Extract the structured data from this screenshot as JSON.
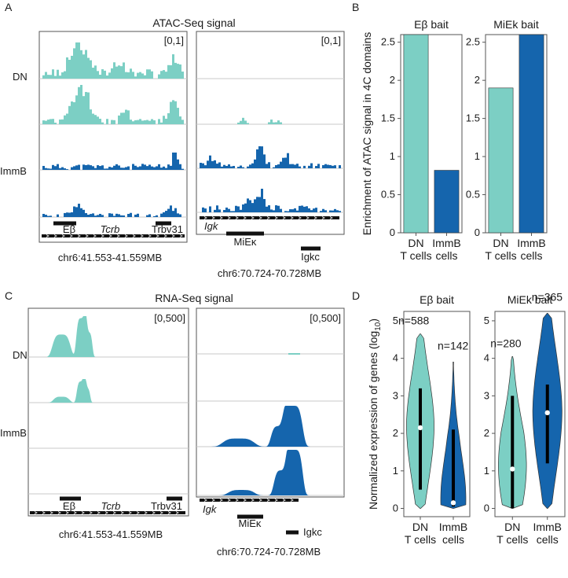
{
  "colors": {
    "dn": "#7ccfc4",
    "immb": "#1565ad",
    "frame": "#555555",
    "grid": "#c8c8c8",
    "gene": "#111111"
  },
  "panel_letters": [
    "A",
    "B",
    "C",
    "D"
  ],
  "panel_a": {
    "title": "ATAC-Seq signal",
    "row_labels": [
      "DN",
      "ImmB"
    ],
    "left": {
      "scale": "[0,1]",
      "coord": "chr6:41.553-41.559MB",
      "genes": [
        {
          "label": "Eβ",
          "italic": false
        },
        {
          "label": "Tcrb",
          "italic": true
        },
        {
          "label": "Trbv31",
          "italic": false
        }
      ]
    },
    "right": {
      "scale": "[0,1]",
      "coord": "chr6:70.724-70.728MB",
      "genes": [
        {
          "label": "Igk",
          "italic": true
        },
        {
          "label": "MiEκ",
          "italic": false
        },
        {
          "label": "Igkc",
          "italic": false
        }
      ]
    }
  },
  "panel_c": {
    "title": "RNA-Seq signal",
    "row_labels": [
      "DN",
      "ImmB"
    ],
    "left": {
      "scale": "[0,500]",
      "coord": "chr6:41.553-41.559MB",
      "genes": [
        {
          "label": "Eβ",
          "italic": false
        },
        {
          "label": "Tcrb",
          "italic": true
        },
        {
          "label": "Trbv31",
          "italic": false
        }
      ]
    },
    "right": {
      "scale": "[0,500]",
      "coord": "chr6:70.724-70.728MB",
      "genes": [
        {
          "label": "Igk",
          "italic": true
        },
        {
          "label": "MiEκ",
          "italic": false
        },
        {
          "label": "Igkc",
          "italic": false
        }
      ]
    }
  },
  "chart_data": [
    {
      "id": "B-Eb",
      "type": "bar",
      "title": "Eβ bait",
      "ylabel": "Enrichment of ATAC signal in 4C domains",
      "categories": [
        [
          "DN",
          "T cells"
        ],
        [
          "ImmB",
          "cells"
        ]
      ],
      "values": [
        2.6,
        0.82
      ],
      "ylim": [
        0,
        2.6
      ],
      "yticks": [
        0,
        0.5,
        1,
        1.5,
        2,
        2.5
      ]
    },
    {
      "id": "B-MiEk",
      "type": "bar",
      "title": "MiEk bait",
      "categories": [
        [
          "DN",
          "T cells"
        ],
        [
          "ImmB",
          "cells"
        ]
      ],
      "values": [
        1.9,
        2.6
      ],
      "ylim": [
        0,
        2.6
      ],
      "yticks": [
        0,
        0.5,
        1,
        1.5,
        2,
        2.5
      ]
    },
    {
      "id": "D-Eb",
      "type": "violin",
      "title": "Eβ bait",
      "ylabel": "Normalized expression of genes (log10)",
      "categories": [
        [
          "DN",
          "T cells"
        ],
        [
          "ImmB",
          "cells"
        ]
      ],
      "n_labels": [
        "n=588",
        "n=142"
      ],
      "medians": [
        2.15,
        0.15
      ],
      "iqr": [
        [
          0.5,
          3.2
        ],
        [
          0.05,
          2.1
        ]
      ],
      "ranges": [
        [
          0,
          4.65
        ],
        [
          0,
          3.9
        ]
      ],
      "ylim": [
        0,
        5.2
      ],
      "yticks": [
        0,
        1,
        2,
        3,
        4,
        5
      ]
    },
    {
      "id": "D-MiEk",
      "type": "violin",
      "title": "MiEk bait",
      "categories": [
        [
          "DN",
          "T cells"
        ],
        [
          "ImmB",
          "cells"
        ]
      ],
      "n_labels": [
        "n=280",
        "n=365"
      ],
      "medians": [
        1.05,
        2.55
      ],
      "iqr": [
        [
          0,
          3.0
        ],
        [
          1.2,
          3.3
        ]
      ],
      "ranges": [
        [
          0,
          4.05
        ],
        [
          0,
          5.2
        ]
      ],
      "ylim": [
        0,
        5.2
      ],
      "yticks": [
        0,
        1,
        2,
        3,
        4,
        5
      ]
    }
  ]
}
